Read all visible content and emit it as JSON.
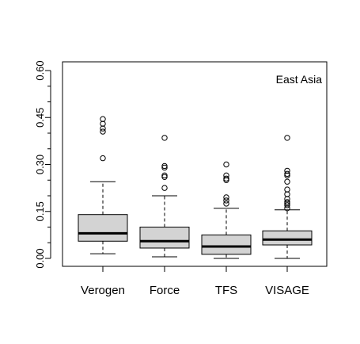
{
  "chart_data": {
    "type": "boxplot",
    "annotation": "East Asia",
    "categories": [
      "Verogen",
      "Force",
      "TFS",
      "VISAGE"
    ],
    "yticks": [
      "0.00",
      "0.15",
      "0.30",
      "0.45",
      "0.60"
    ],
    "ylim": [
      -0.03,
      0.63
    ],
    "minor_ticks": [
      0.05,
      0.1,
      0.2,
      0.25,
      0.35,
      0.4,
      0.5,
      0.55
    ],
    "grid": false,
    "box_color": "#d3d3d3",
    "boxes": [
      {
        "category": "Verogen",
        "whisker_low": 0.015,
        "q1": 0.055,
        "median": 0.08,
        "q3": 0.14,
        "whisker_high": 0.245,
        "outliers": [
          0.445,
          0.43,
          0.415,
          0.405,
          0.32
        ]
      },
      {
        "category": "Force",
        "whisker_low": 0.005,
        "q1": 0.033,
        "median": 0.055,
        "q3": 0.1,
        "whisker_high": 0.2,
        "outliers": [
          0.385,
          0.295,
          0.29,
          0.265,
          0.26,
          0.225
        ]
      },
      {
        "category": "TFS",
        "whisker_low": 0.0,
        "q1": 0.013,
        "median": 0.038,
        "q3": 0.075,
        "whisker_high": 0.16,
        "outliers": [
          0.3,
          0.265,
          0.255,
          0.25,
          0.195,
          0.185,
          0.175
        ]
      },
      {
        "category": "VISAGE",
        "whisker_low": 0.0,
        "q1": 0.043,
        "median": 0.06,
        "q3": 0.088,
        "whisker_high": 0.155,
        "outliers": [
          0.385,
          0.28,
          0.27,
          0.265,
          0.245,
          0.22,
          0.205,
          0.19,
          0.18,
          0.175,
          0.17,
          0.16
        ]
      }
    ]
  }
}
